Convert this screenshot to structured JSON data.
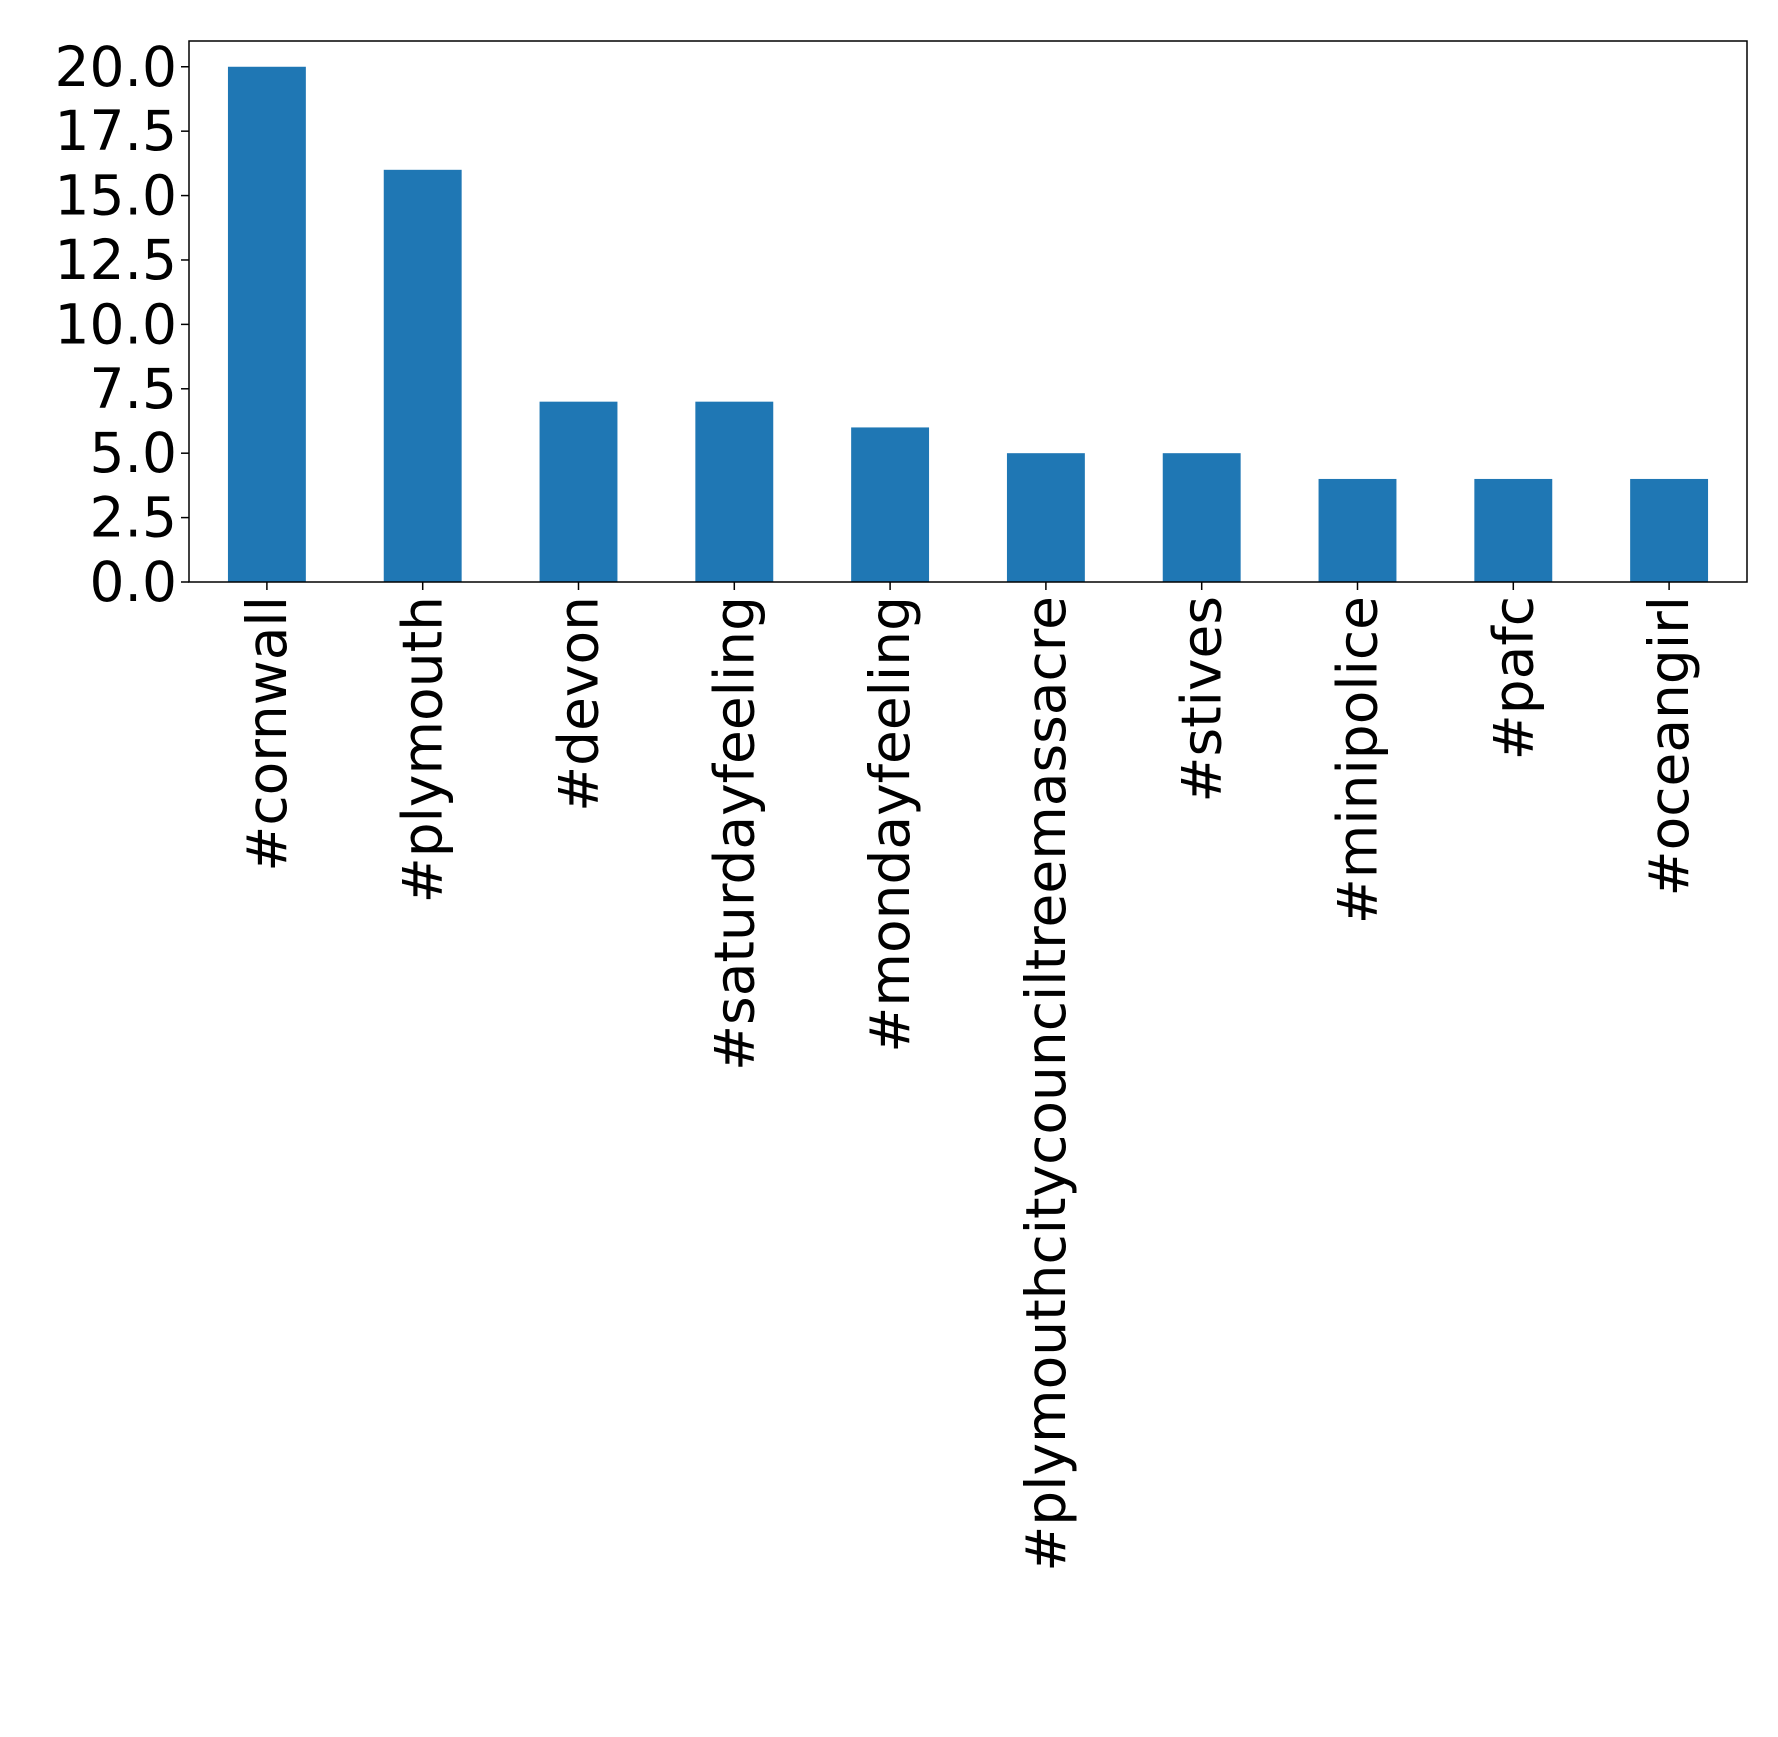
{
  "chart_data": {
    "type": "bar",
    "title": "",
    "xlabel": "",
    "ylabel": "",
    "categories": [
      "#cornwall",
      "#plymouth",
      "#devon",
      "#saturdayfeeling",
      "#mondayfeeling",
      "#plymouthcitycounciltreemassacre",
      "#stives",
      "#minipolice",
      "#pafc",
      "#oceangirl"
    ],
    "values": [
      20,
      16,
      7,
      7,
      6,
      5,
      5,
      4,
      4,
      4
    ],
    "ylim": [
      0,
      21
    ],
    "yticks": [
      "0.0",
      "2.5",
      "5.0",
      "7.5",
      "10.0",
      "12.5",
      "15.0",
      "17.5",
      "20.0"
    ],
    "ytick_values": [
      0,
      2.5,
      5,
      7.5,
      10,
      12.5,
      15,
      17.5,
      20
    ],
    "bar_color": "#1f77b4",
    "grid": false,
    "legend": "none"
  }
}
